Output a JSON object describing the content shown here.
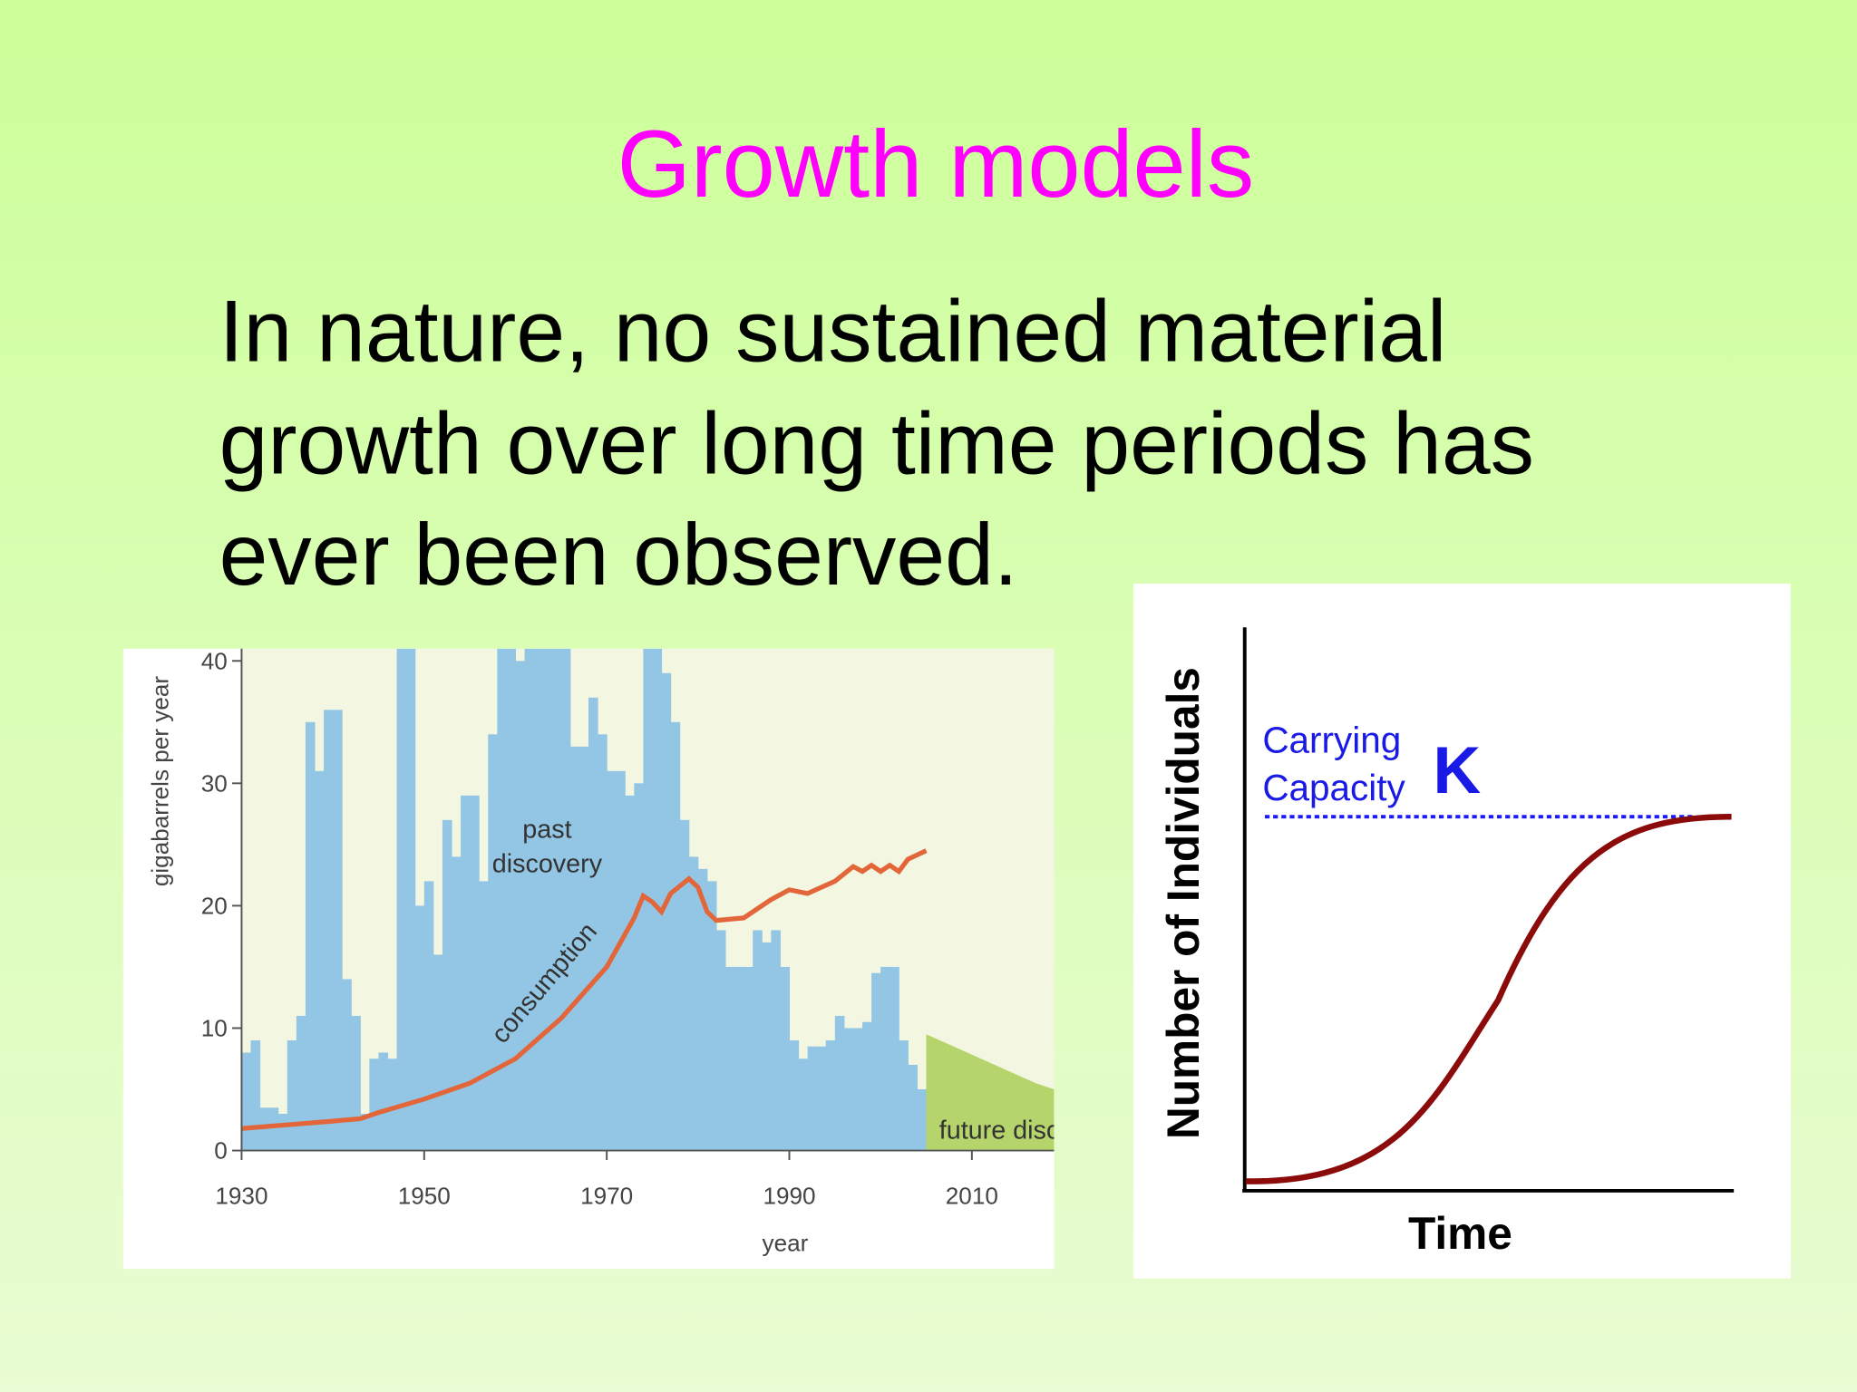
{
  "slide": {
    "title": "Growth models",
    "body": [
      "In nature, no sustained material",
      "growth over long time periods has",
      "ever been observed."
    ]
  },
  "chart_data": [
    {
      "type": "combo",
      "y_label": "gigabarrels per year",
      "x_label": "year",
      "xlim": [
        1930,
        2019
      ],
      "ylim": [
        0,
        41
      ],
      "xticks": [
        1930,
        1950,
        1970,
        1990,
        2010
      ],
      "yticks": [
        0,
        10,
        20,
        30,
        40
      ],
      "series": [
        {
          "name": "past discovery",
          "kind": "bar",
          "color": "#93c6e4",
          "x": [
            1930,
            1931,
            1932,
            1933,
            1934,
            1935,
            1936,
            1937,
            1938,
            1939,
            1940,
            1941,
            1942,
            1943,
            1944,
            1945,
            1946,
            1947,
            1948,
            1949,
            1950,
            1951,
            1952,
            1953,
            1954,
            1955,
            1956,
            1957,
            1958,
            1959,
            1960,
            1961,
            1962,
            1963,
            1964,
            1965,
            1966,
            1967,
            1968,
            1969,
            1970,
            1971,
            1972,
            1973,
            1974,
            1975,
            1976,
            1977,
            1978,
            1979,
            1980,
            1981,
            1982,
            1983,
            1984,
            1985,
            1986,
            1987,
            1988,
            1989,
            1990,
            1991,
            1992,
            1993,
            1994,
            1995,
            1996,
            1997,
            1998,
            1999,
            2000,
            2001,
            2002,
            2003,
            2004,
            2005
          ],
          "values": [
            8,
            9,
            3.5,
            3.5,
            3,
            9,
            11,
            35,
            31,
            36,
            36,
            14,
            11,
            3,
            7.5,
            8,
            7.5,
            41,
            41,
            20,
            22,
            16,
            27,
            24,
            29,
            29,
            22,
            34,
            41,
            41,
            40,
            41,
            41,
            41,
            41,
            41,
            33,
            33,
            37,
            34,
            31,
            31,
            29,
            30,
            41,
            41,
            39,
            35,
            27,
            24,
            23,
            22,
            18,
            15,
            15,
            15,
            18,
            17,
            18,
            15,
            9,
            7.5,
            8.5,
            8.5,
            9,
            11,
            10,
            10,
            10.5,
            14.5,
            15,
            15,
            9,
            7,
            5,
            5.5
          ]
        },
        {
          "name": "future discovery",
          "kind": "area",
          "color": "#b6d46c",
          "x": [
            2005,
            2008,
            2011,
            2014,
            2017,
            2019
          ],
          "values": [
            9.5,
            8.5,
            7.5,
            6.5,
            5.5,
            5
          ]
        },
        {
          "name": "consumption",
          "kind": "line",
          "color": "#e2663a",
          "x": [
            1930,
            1935,
            1940,
            1943,
            1945,
            1950,
            1955,
            1960,
            1965,
            1970,
            1973,
            1974,
            1975,
            1976,
            1977,
            1979,
            1980,
            1981,
            1982,
            1985,
            1988,
            1990,
            1992,
            1995,
            1997,
            1998,
            1999,
            2000,
            2001,
            2002,
            2003,
            2005
          ],
          "values": [
            1.8,
            2.1,
            2.4,
            2.6,
            3.1,
            4.2,
            5.5,
            7.5,
            10.8,
            15,
            19,
            20.8,
            20.3,
            19.5,
            21,
            22.2,
            21.5,
            19.5,
            18.8,
            19,
            20.5,
            21.3,
            21,
            22,
            23.2,
            22.8,
            23.3,
            22.8,
            23.3,
            22.8,
            23.8,
            24.5
          ]
        }
      ]
    },
    {
      "type": "logistic",
      "y_label": "Number of Individuals",
      "x_label": "Time",
      "annotation": [
        "Carrying",
        "Capacity"
      ],
      "k_label": "K"
    }
  ]
}
